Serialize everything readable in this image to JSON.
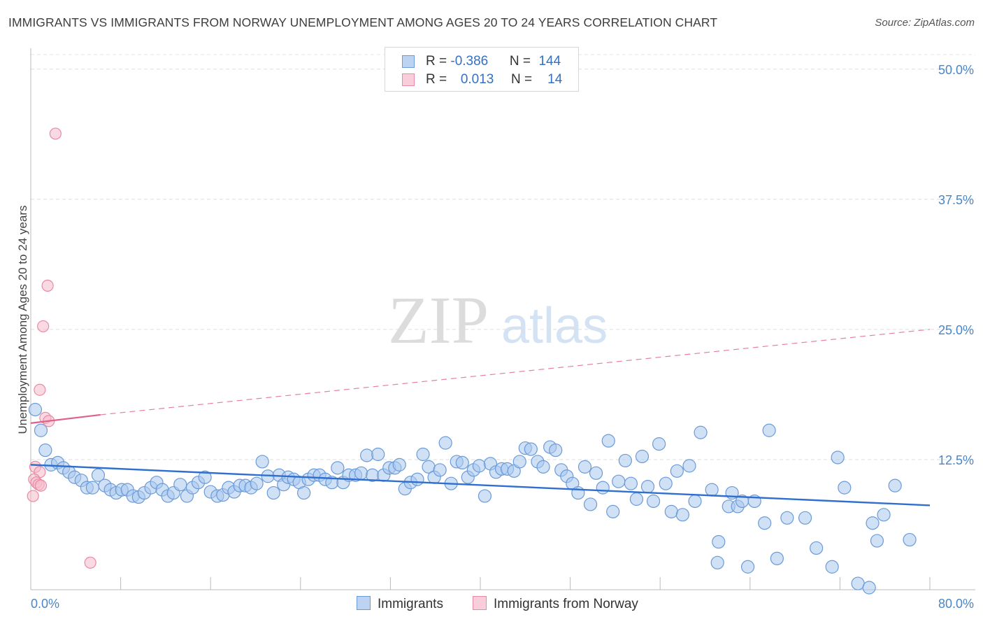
{
  "header": {
    "title": "IMMIGRANTS VS IMMIGRANTS FROM NORWAY UNEMPLOYMENT AMONG AGES 20 TO 24 YEARS CORRELATION CHART",
    "source_prefix": "Source: ",
    "source_name": "ZipAtlas.com"
  },
  "watermark": {
    "zip": "ZIP",
    "atlas": "atlas"
  },
  "colors": {
    "blue_fill": "#aac8ee",
    "blue_stroke": "#6a9bd8",
    "blue_line": "#2f6fcf",
    "pink_fill": "#f5bccb",
    "pink_stroke": "#e88aa5",
    "pink_line": "#e0608a",
    "accent_text": "#4a86c8"
  },
  "legend": {
    "rows": [
      {
        "r_label": "R = ",
        "r_value": "-0.386",
        "n_label": "N = ",
        "n_value": "144"
      },
      {
        "r_label": "R = ",
        "r_value": "0.013",
        "n_label": "N = ",
        "n_value": "14"
      }
    ]
  },
  "bottom_legend": {
    "series1": "Immigrants",
    "series2": "Immigrants from Norway"
  },
  "chart_data": {
    "type": "scatter",
    "title": "IMMIGRANTS VS IMMIGRANTS FROM NORWAY UNEMPLOYMENT AMONG AGES 20 TO 24 YEARS CORRELATION CHART",
    "xlabel": "",
    "ylabel": "Unemployment Among Ages 20 to 24 years",
    "xlim": [
      0,
      80
    ],
    "ylim": [
      0,
      52
    ],
    "x_tick_labels": [
      "0.0%",
      "80.0%"
    ],
    "y_ticks": [
      12.5,
      25.0,
      37.5,
      50.0
    ],
    "y_tick_labels": [
      "12.5%",
      "25.0%",
      "37.5%",
      "50.0%"
    ],
    "grid": true,
    "series": [
      {
        "name": "Immigrants",
        "color": "#aac8ee",
        "points": [
          [
            0.4,
            17.3
          ],
          [
            0.9,
            15.3
          ],
          [
            1.3,
            13.4
          ],
          [
            1.8,
            12.0
          ],
          [
            2.4,
            12.2
          ],
          [
            2.9,
            11.7
          ],
          [
            3.4,
            11.3
          ],
          [
            3.9,
            10.8
          ],
          [
            4.5,
            10.5
          ],
          [
            5.0,
            9.8
          ],
          [
            5.5,
            9.8
          ],
          [
            6.0,
            11.0
          ],
          [
            6.6,
            10.0
          ],
          [
            7.1,
            9.6
          ],
          [
            7.6,
            9.3
          ],
          [
            8.1,
            9.6
          ],
          [
            8.6,
            9.6
          ],
          [
            9.1,
            9.0
          ],
          [
            9.6,
            8.9
          ],
          [
            10.1,
            9.3
          ],
          [
            10.7,
            9.8
          ],
          [
            11.2,
            10.3
          ],
          [
            11.7,
            9.6
          ],
          [
            12.2,
            9.0
          ],
          [
            12.7,
            9.3
          ],
          [
            13.3,
            10.1
          ],
          [
            13.9,
            9.0
          ],
          [
            14.4,
            9.8
          ],
          [
            14.9,
            10.3
          ],
          [
            15.5,
            10.8
          ],
          [
            16.0,
            9.4
          ],
          [
            16.6,
            9.0
          ],
          [
            17.1,
            9.1
          ],
          [
            17.6,
            9.8
          ],
          [
            18.1,
            9.4
          ],
          [
            18.6,
            10.0
          ],
          [
            19.1,
            10.0
          ],
          [
            19.6,
            9.8
          ],
          [
            20.1,
            10.2
          ],
          [
            20.6,
            12.3
          ],
          [
            21.1,
            10.9
          ],
          [
            21.6,
            9.3
          ],
          [
            22.1,
            11.0
          ],
          [
            22.5,
            10.1
          ],
          [
            22.9,
            10.8
          ],
          [
            23.4,
            10.6
          ],
          [
            23.9,
            10.3
          ],
          [
            24.3,
            9.3
          ],
          [
            24.7,
            10.6
          ],
          [
            25.2,
            11.0
          ],
          [
            25.7,
            11.0
          ],
          [
            26.2,
            10.6
          ],
          [
            26.8,
            10.3
          ],
          [
            27.3,
            11.7
          ],
          [
            27.8,
            10.3
          ],
          [
            28.3,
            11.0
          ],
          [
            28.9,
            11.0
          ],
          [
            29.4,
            11.2
          ],
          [
            29.9,
            12.9
          ],
          [
            30.4,
            11.0
          ],
          [
            30.9,
            13.0
          ],
          [
            31.4,
            11.0
          ],
          [
            31.9,
            11.7
          ],
          [
            32.4,
            11.7
          ],
          [
            32.8,
            12.0
          ],
          [
            33.3,
            9.7
          ],
          [
            33.8,
            10.3
          ],
          [
            34.4,
            10.6
          ],
          [
            34.9,
            13.0
          ],
          [
            35.4,
            11.8
          ],
          [
            35.9,
            10.8
          ],
          [
            36.4,
            11.5
          ],
          [
            36.9,
            14.1
          ],
          [
            37.4,
            10.2
          ],
          [
            37.9,
            12.3
          ],
          [
            38.4,
            12.2
          ],
          [
            38.9,
            10.8
          ],
          [
            39.4,
            11.5
          ],
          [
            39.9,
            11.9
          ],
          [
            40.4,
            9.0
          ],
          [
            40.9,
            12.1
          ],
          [
            41.4,
            11.3
          ],
          [
            41.9,
            11.6
          ],
          [
            42.4,
            11.6
          ],
          [
            43.0,
            11.4
          ],
          [
            43.5,
            12.3
          ],
          [
            44.0,
            13.6
          ],
          [
            44.5,
            13.5
          ],
          [
            45.1,
            12.3
          ],
          [
            45.6,
            11.8
          ],
          [
            46.2,
            13.7
          ],
          [
            46.7,
            13.4
          ],
          [
            47.2,
            11.5
          ],
          [
            47.7,
            10.9
          ],
          [
            48.2,
            10.2
          ],
          [
            48.7,
            9.3
          ],
          [
            49.3,
            11.8
          ],
          [
            49.8,
            8.2
          ],
          [
            50.3,
            11.2
          ],
          [
            50.9,
            9.8
          ],
          [
            51.4,
            14.3
          ],
          [
            51.8,
            7.5
          ],
          [
            52.3,
            10.4
          ],
          [
            52.9,
            12.4
          ],
          [
            53.4,
            10.2
          ],
          [
            53.9,
            8.7
          ],
          [
            54.4,
            12.8
          ],
          [
            54.9,
            9.9
          ],
          [
            55.4,
            8.5
          ],
          [
            55.9,
            14.0
          ],
          [
            56.5,
            10.2
          ],
          [
            57.0,
            7.5
          ],
          [
            57.5,
            11.4
          ],
          [
            58.0,
            7.2
          ],
          [
            58.6,
            11.9
          ],
          [
            59.1,
            8.5
          ],
          [
            59.6,
            15.1
          ],
          [
            60.6,
            9.6
          ],
          [
            61.2,
            4.6
          ],
          [
            61.1,
            2.6
          ],
          [
            62.1,
            8.0
          ],
          [
            62.4,
            9.3
          ],
          [
            62.9,
            8.0
          ],
          [
            63.3,
            8.5
          ],
          [
            63.8,
            2.2
          ],
          [
            64.4,
            8.5
          ],
          [
            65.3,
            6.4
          ],
          [
            65.7,
            15.3
          ],
          [
            66.4,
            3.0
          ],
          [
            67.3,
            6.9
          ],
          [
            68.9,
            6.9
          ],
          [
            69.9,
            4.0
          ],
          [
            71.3,
            2.2
          ],
          [
            71.8,
            12.7
          ],
          [
            72.4,
            9.8
          ],
          [
            73.6,
            0.6
          ],
          [
            74.6,
            0.2
          ],
          [
            74.9,
            6.4
          ],
          [
            75.3,
            4.7
          ],
          [
            75.9,
            7.2
          ],
          [
            76.9,
            10.0
          ],
          [
            78.2,
            4.8
          ]
        ]
      },
      {
        "name": "Immigrants from Norway",
        "color": "#f5bccb",
        "points": [
          [
            2.2,
            43.8
          ],
          [
            1.5,
            29.2
          ],
          [
            1.1,
            25.3
          ],
          [
            0.8,
            19.2
          ],
          [
            1.3,
            16.5
          ],
          [
            1.6,
            16.2
          ],
          [
            0.4,
            11.8
          ],
          [
            0.8,
            11.3
          ],
          [
            0.3,
            10.6
          ],
          [
            0.5,
            10.3
          ],
          [
            0.7,
            10.1
          ],
          [
            0.9,
            10.0
          ],
          [
            0.2,
            9.0
          ],
          [
            5.3,
            2.6
          ]
        ]
      }
    ],
    "trend_lines": [
      {
        "series": "Immigrants",
        "x": [
          0,
          80
        ],
        "y": [
          12.0,
          8.1
        ],
        "style": "solid"
      },
      {
        "series": "Immigrants from Norway",
        "x": [
          0,
          6.2
        ],
        "y": [
          16.0,
          16.8
        ],
        "style": "solid"
      },
      {
        "series": "Immigrants from Norway",
        "x": [
          6.2,
          80
        ],
        "y": [
          16.8,
          25.0
        ],
        "style": "dashed"
      }
    ]
  }
}
